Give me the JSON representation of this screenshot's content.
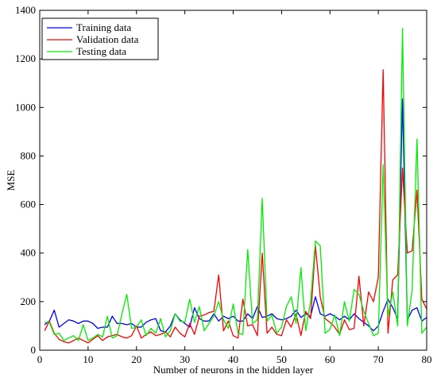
{
  "chart_data": {
    "type": "line",
    "title": "",
    "xlabel": "Number of neurons in the hidden layer",
    "ylabel": "MSE",
    "xlim": [
      0,
      80
    ],
    "ylim": [
      0,
      1400
    ],
    "xticks": [
      0,
      10,
      20,
      30,
      40,
      50,
      60,
      70,
      80
    ],
    "yticks": [
      0,
      200,
      400,
      600,
      800,
      1000,
      1200,
      1400
    ],
    "grid": false,
    "legend_position": "top-left",
    "x": [
      1,
      2,
      3,
      4,
      5,
      6,
      7,
      8,
      9,
      10,
      11,
      12,
      13,
      14,
      15,
      16,
      17,
      18,
      19,
      20,
      21,
      22,
      23,
      24,
      25,
      26,
      27,
      28,
      29,
      30,
      31,
      32,
      33,
      34,
      35,
      36,
      37,
      38,
      39,
      40,
      41,
      42,
      43,
      44,
      45,
      46,
      47,
      48,
      49,
      50,
      51,
      52,
      53,
      54,
      55,
      56,
      57,
      58,
      59,
      60,
      61,
      62,
      63,
      64,
      65,
      66,
      67,
      68,
      69,
      70,
      71,
      72,
      73,
      74,
      75,
      76,
      77,
      78,
      79,
      80
    ],
    "series": [
      {
        "name": "Training data",
        "color": "#0000ff",
        "values": [
          105,
          120,
          165,
          95,
          110,
          125,
          120,
          110,
          120,
          120,
          110,
          90,
          95,
          95,
          140,
          110,
          110,
          105,
          110,
          95,
          95,
          115,
          125,
          130,
          80,
          75,
          100,
          150,
          125,
          110,
          95,
          175,
          130,
          120,
          120,
          150,
          120,
          140,
          130,
          140,
          120,
          120,
          150,
          130,
          180,
          135,
          140,
          150,
          130,
          125,
          130,
          140,
          165,
          135,
          150,
          140,
          220,
          150,
          140,
          150,
          140,
          125,
          140,
          125,
          150,
          130,
          115,
          100,
          80,
          100,
          160,
          210,
          175,
          130,
          1035,
          125,
          165,
          175,
          120,
          135
        ]
      },
      {
        "name": "Validation data",
        "color": "#ff0000",
        "values": [
          80,
          120,
          70,
          45,
          35,
          30,
          40,
          50,
          40,
          30,
          45,
          60,
          40,
          55,
          60,
          65,
          55,
          50,
          60,
          100,
          50,
          65,
          75,
          60,
          65,
          75,
          55,
          95,
          70,
          55,
          110,
          65,
          140,
          145,
          155,
          160,
          310,
          80,
          120,
          60,
          50,
          210,
          100,
          105,
          60,
          400,
          70,
          95,
          65,
          60,
          125,
          95,
          150,
          60,
          160,
          130,
          430,
          220,
          130,
          115,
          95,
          65,
          125,
          85,
          90,
          305,
          100,
          240,
          200,
          300,
          1155,
          70,
          290,
          310,
          750,
          400,
          410,
          660,
          210,
          170
        ]
      },
      {
        "name": "Testing data",
        "color": "#00ee00",
        "values": [
          115,
          115,
          65,
          70,
          40,
          50,
          60,
          40,
          105,
          40,
          50,
          65,
          55,
          140,
          50,
          60,
          150,
          230,
          90,
          95,
          125,
          60,
          90,
          70,
          130,
          55,
          80,
          150,
          120,
          115,
          210,
          115,
          180,
          80,
          110,
          140,
          200,
          125,
          90,
          190,
          70,
          65,
          415,
          110,
          125,
          625,
          120,
          145,
          70,
          95,
          180,
          220,
          110,
          340,
          80,
          200,
          450,
          430,
          70,
          85,
          145,
          60,
          200,
          120,
          250,
          230,
          160,
          110,
          60,
          70,
          765,
          140,
          240,
          100,
          1325,
          100,
          250,
          870,
          70,
          95
        ]
      }
    ]
  }
}
